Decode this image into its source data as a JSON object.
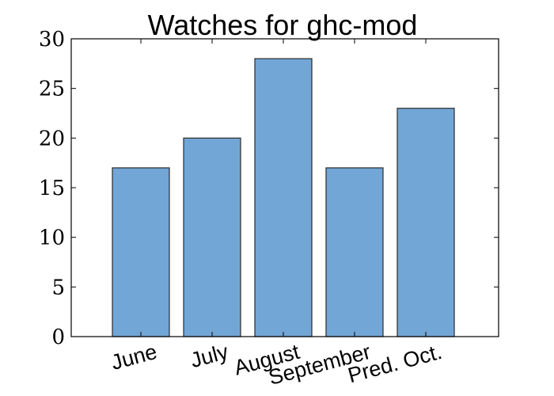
{
  "chart_data": {
    "type": "bar",
    "title": "Watches for ghc-mod",
    "xlabel": "",
    "ylabel": "",
    "categories": [
      "June",
      "July",
      "August",
      "September",
      "Pred. Oct."
    ],
    "values": [
      17,
      20,
      28,
      17,
      23
    ],
    "ylim": [
      0,
      30
    ],
    "yticks": [
      "0",
      "5",
      "10",
      "15",
      "20",
      "25",
      "30"
    ],
    "bar_color": "#72a6d6",
    "edge_color": "#2b2b2b",
    "grid": false,
    "legend": "none"
  }
}
